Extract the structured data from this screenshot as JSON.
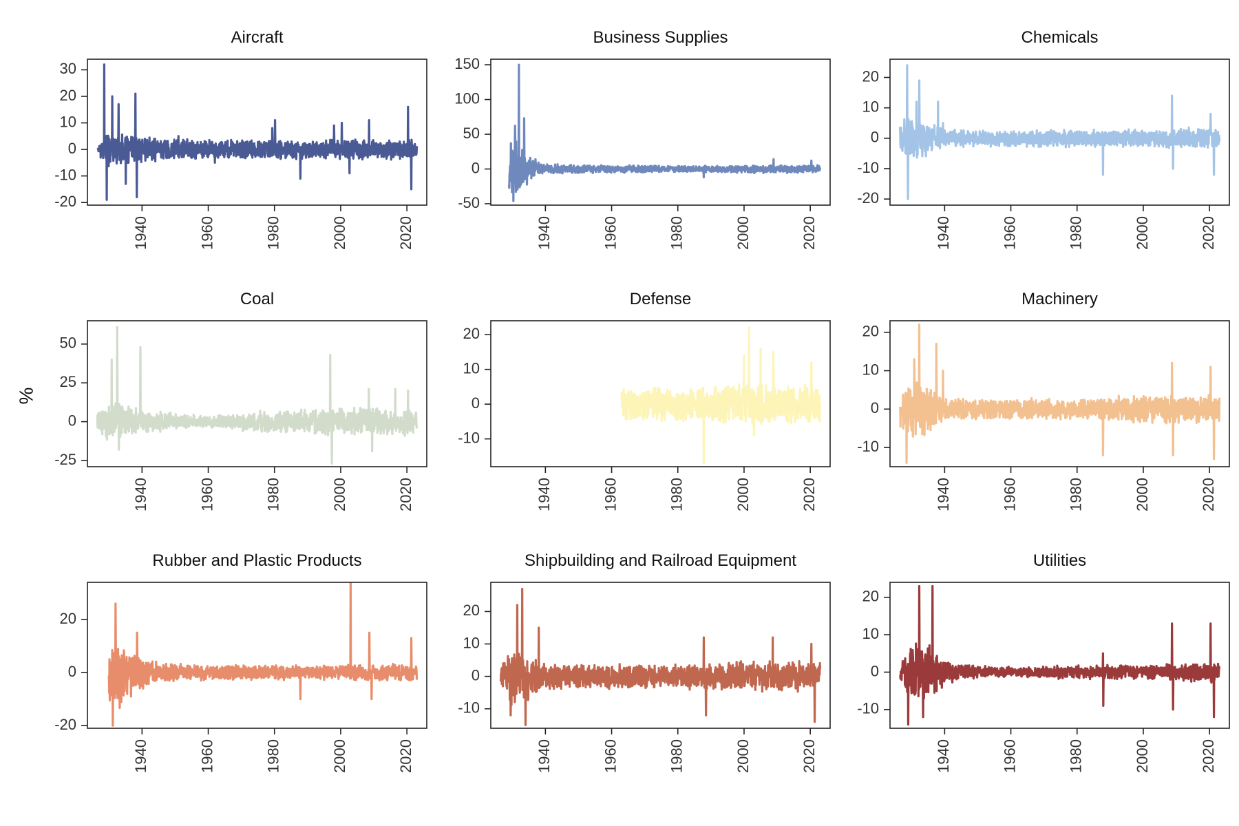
{
  "figure": {
    "ylabel": "%",
    "x_tick_labels": [
      "1940",
      "1960",
      "1980",
      "2000",
      "2020"
    ]
  },
  "chart_data": [
    {
      "type": "line",
      "title": "Aircraft",
      "color": "#4a5a94",
      "xlim": [
        1923.5,
        2026
      ],
      "ylim": [
        -21,
        34
      ],
      "yticks": [
        30,
        20,
        10,
        0,
        -10,
        -20
      ],
      "ytick_labels": [
        "30",
        "20",
        "10",
        "0",
        "-10",
        "-20"
      ],
      "start": 1926.5,
      "end": 2023.0,
      "series": [
        {
          "values": [
            [
              1926.5,
              0
            ],
            [
              1928.5,
              7
            ],
            [
              1940,
              5
            ],
            [
              1960,
              4
            ],
            [
              1980,
              4
            ],
            [
              2000,
              4
            ],
            [
              2019,
              4
            ],
            [
              2023,
              4
            ]
          ]
        }
      ],
      "spikes": [
        [
          1928.6,
          32
        ],
        [
          1929.3,
          -19
        ],
        [
          1931.0,
          20
        ],
        [
          1932.9,
          17
        ],
        [
          1935.1,
          -13
        ],
        [
          1938.0,
          21
        ],
        [
          1938.4,
          -18
        ],
        [
          1951.0,
          5
        ],
        [
          1962.0,
          -5
        ],
        [
          1979.3,
          8
        ],
        [
          1980.2,
          11
        ],
        [
          1987.8,
          -11
        ],
        [
          1998.0,
          9
        ],
        [
          2000.3,
          10
        ],
        [
          2002.7,
          -9
        ],
        [
          2008.6,
          11
        ],
        [
          2020.3,
          16
        ],
        [
          2021.3,
          -15
        ]
      ]
    },
    {
      "type": "line",
      "title": "Business Supplies",
      "color": "#7089bd",
      "xlim": [
        1923.5,
        2026
      ],
      "ylim": [
        -52,
        158
      ],
      "yticks": [
        150,
        100,
        50,
        0,
        -50
      ],
      "ytick_labels": [
        "150",
        "100",
        "50",
        "0",
        "-50"
      ],
      "start": 1929.0,
      "end": 2023.0,
      "series": [
        {
          "values": [
            [
              1929.0,
              40
            ],
            [
              1931,
              45
            ],
            [
              1935,
              20
            ],
            [
              1940,
              8
            ],
            [
              1960,
              6
            ],
            [
              1980,
              5
            ],
            [
              2000,
              6
            ],
            [
              2023,
              6
            ]
          ]
        }
      ],
      "spikes": [
        [
          1932.0,
          150
        ],
        [
          1930.8,
          62
        ],
        [
          1933.6,
          73
        ],
        [
          1930.3,
          -46
        ],
        [
          1937.0,
          14
        ],
        [
          1987.8,
          -12
        ],
        [
          2008.9,
          14
        ],
        [
          2020.3,
          12
        ]
      ]
    },
    {
      "type": "line",
      "title": "Chemicals",
      "color": "#a3c4e6",
      "xlim": [
        1923.5,
        2026
      ],
      "ylim": [
        -22,
        26
      ],
      "yticks": [
        20,
        10,
        0,
        -10,
        -20
      ],
      "ytick_labels": [
        "20",
        "10",
        "0",
        "-10",
        "-20"
      ],
      "start": 1926.5,
      "end": 2023.0,
      "series": [
        {
          "values": [
            [
              1926.5,
              4
            ],
            [
              1929,
              10
            ],
            [
              1935,
              6
            ],
            [
              1940,
              3
            ],
            [
              1960,
              3
            ],
            [
              1980,
              3
            ],
            [
              2000,
              3
            ],
            [
              2023,
              4
            ]
          ]
        }
      ],
      "spikes": [
        [
          1928.7,
          24
        ],
        [
          1928.9,
          -20
        ],
        [
          1932.3,
          19
        ],
        [
          1931.5,
          12
        ],
        [
          1938.0,
          12
        ],
        [
          1939.5,
          5
        ],
        [
          1987.8,
          -12
        ],
        [
          2008.7,
          14
        ],
        [
          2009.0,
          -10
        ],
        [
          2020.3,
          8
        ],
        [
          2021.3,
          -12
        ]
      ]
    },
    {
      "type": "line",
      "title": "Coal",
      "color": "#d1dccb",
      "xlim": [
        1923.5,
        2026
      ],
      "ylim": [
        -29,
        65
      ],
      "yticks": [
        50,
        25,
        0,
        -25
      ],
      "ytick_labels": [
        "50",
        "25",
        "0",
        "-25"
      ],
      "start": 1926.5,
      "end": 2023.0,
      "series": [
        {
          "values": [
            [
              1926.5,
              8
            ],
            [
              1932,
              15
            ],
            [
              1940,
              8
            ],
            [
              1960,
              4
            ],
            [
              1980,
              8
            ],
            [
              2000,
              10
            ],
            [
              2023,
              10
            ]
          ]
        }
      ],
      "spikes": [
        [
          1932.5,
          61
        ],
        [
          1930.8,
          40
        ],
        [
          1939.5,
          48
        ],
        [
          1933.0,
          -18
        ],
        [
          1996.8,
          43
        ],
        [
          1997.3,
          -27
        ],
        [
          2008.5,
          21
        ],
        [
          2009.5,
          -19
        ],
        [
          2016.5,
          21
        ],
        [
          2020.3,
          20
        ]
      ]
    },
    {
      "type": "line",
      "title": "Defense",
      "color": "#fdf5b8",
      "xlim": [
        1923.5,
        2026
      ],
      "ylim": [
        -18,
        24
      ],
      "yticks": [
        20,
        10,
        0,
        -10
      ],
      "ytick_labels": [
        "20",
        "10",
        "0",
        "-10"
      ],
      "start": 1963.0,
      "end": 2023.0,
      "series": [
        {
          "values": [
            [
              1963.0,
              5
            ],
            [
              1970,
              5
            ],
            [
              1980,
              5
            ],
            [
              1990,
              6
            ],
            [
              2000,
              7
            ],
            [
              2010,
              6
            ],
            [
              2023,
              6
            ]
          ]
        }
      ],
      "spikes": [
        [
          1987.8,
          -17
        ],
        [
          2001.5,
          22
        ],
        [
          2003.0,
          -9
        ],
        [
          2005.0,
          16
        ],
        [
          2008.8,
          15
        ],
        [
          2000.0,
          14
        ],
        [
          2020.3,
          12
        ]
      ]
    },
    {
      "type": "line",
      "title": "Machinery",
      "color": "#f3c08f",
      "xlim": [
        1923.5,
        2026
      ],
      "ylim": [
        -15,
        23
      ],
      "yticks": [
        20,
        10,
        0,
        -10
      ],
      "ytick_labels": [
        "20",
        "10",
        "0",
        "-10"
      ],
      "start": 1926.5,
      "end": 2023.0,
      "series": [
        {
          "values": [
            [
              1926.5,
              5
            ],
            [
              1930,
              10
            ],
            [
              1935,
              7
            ],
            [
              1940,
              3
            ],
            [
              1960,
              3
            ],
            [
              1980,
              3
            ],
            [
              2000,
              4
            ],
            [
              2023,
              4
            ]
          ]
        }
      ],
      "spikes": [
        [
          1932.3,
          22
        ],
        [
          1928.5,
          -14
        ],
        [
          1930.8,
          13
        ],
        [
          1937.5,
          17
        ],
        [
          1939.5,
          10
        ],
        [
          1987.8,
          -12
        ],
        [
          2008.7,
          12
        ],
        [
          2009.0,
          -12
        ],
        [
          2020.3,
          11
        ],
        [
          2021.3,
          -13
        ]
      ]
    },
    {
      "type": "line",
      "title": "Rubber and Plastic Products",
      "color": "#e88d6b",
      "xlim": [
        1923.5,
        2026
      ],
      "ylim": [
        -21,
        34
      ],
      "yticks": [
        20,
        0,
        -20
      ],
      "ytick_labels": [
        "20",
        "0",
        "-20"
      ],
      "start": 1930.0,
      "end": 2023.0,
      "series": [
        {
          "values": [
            [
              1930.0,
              12
            ],
            [
              1933,
              14
            ],
            [
              1938,
              8
            ],
            [
              1945,
              4
            ],
            [
              1960,
              3
            ],
            [
              1980,
              3
            ],
            [
              2000,
              3
            ],
            [
              2023,
              4
            ]
          ]
        }
      ],
      "spikes": [
        [
          1932.0,
          26
        ],
        [
          1931.2,
          -20
        ],
        [
          1938.5,
          15
        ],
        [
          2003.0,
          34
        ],
        [
          1987.8,
          -10
        ],
        [
          2008.7,
          15
        ],
        [
          2009.3,
          -10
        ],
        [
          2021.3,
          13
        ]
      ]
    },
    {
      "type": "line",
      "title": "Shipbuilding and Railroad Equipment",
      "color": "#c0674f",
      "xlim": [
        1923.5,
        2026
      ],
      "ylim": [
        -16,
        29
      ],
      "yticks": [
        20,
        10,
        0,
        -10
      ],
      "ytick_labels": [
        "20",
        "10",
        "0",
        "-10"
      ],
      "start": 1926.5,
      "end": 2023.0,
      "series": [
        {
          "values": [
            [
              1926.5,
              4
            ],
            [
              1930,
              10
            ],
            [
              1935,
              8
            ],
            [
              1940,
              4
            ],
            [
              1960,
              4
            ],
            [
              1980,
              4
            ],
            [
              2000,
              5
            ],
            [
              2023,
              5
            ]
          ]
        }
      ],
      "spikes": [
        [
          1933.0,
          27
        ],
        [
          1931.5,
          22
        ],
        [
          1934.0,
          -15
        ],
        [
          1929.5,
          -12
        ],
        [
          1938.0,
          15
        ],
        [
          1987.8,
          12
        ],
        [
          1988.5,
          -12
        ],
        [
          2008.7,
          12
        ],
        [
          2020.3,
          10
        ],
        [
          2021.3,
          -14
        ]
      ]
    },
    {
      "type": "line",
      "title": "Utilities",
      "color": "#9a3a3a",
      "xlim": [
        1923.5,
        2026
      ],
      "ylim": [
        -15,
        24
      ],
      "yticks": [
        20,
        10,
        0,
        -10
      ],
      "ytick_labels": [
        "20",
        "10",
        "0",
        "-10"
      ],
      "start": 1926.5,
      "end": 2023.0,
      "series": [
        {
          "values": [
            [
              1926.5,
              2
            ],
            [
              1930,
              8
            ],
            [
              1934,
              10
            ],
            [
              1938,
              5
            ],
            [
              1945,
              2
            ],
            [
              1960,
              1.5
            ],
            [
              1980,
              2
            ],
            [
              2000,
              2
            ],
            [
              2023,
              3
            ]
          ]
        }
      ],
      "spikes": [
        [
          1932.3,
          23
        ],
        [
          1936.3,
          23
        ],
        [
          1929.0,
          -14
        ],
        [
          1933.5,
          -12
        ],
        [
          1987.8,
          5
        ],
        [
          1987.9,
          -9
        ],
        [
          2008.7,
          13
        ],
        [
          2009.0,
          -10
        ],
        [
          2020.3,
          13
        ],
        [
          2021.3,
          -12
        ]
      ]
    }
  ]
}
